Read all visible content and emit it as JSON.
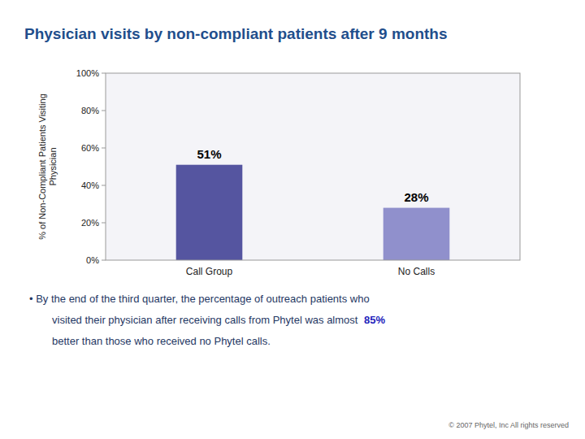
{
  "chart_data": {
    "type": "bar",
    "title": "Physician visits by non-compliant patients after 9 months",
    "categories": [
      "Call Group",
      "No Calls"
    ],
    "values": [
      51,
      28
    ],
    "value_labels": [
      "51%",
      "28%"
    ],
    "data_labels": true,
    "colors": [
      "#5555A0",
      "#9090CC"
    ],
    "ylabel": "% of Non-Compliant Patients Visiting\nPhysician",
    "ylim": [
      0,
      100
    ],
    "yticks": [
      {
        "value": 0,
        "label": "0%"
      },
      {
        "value": 20,
        "label": "20%"
      },
      {
        "value": 40,
        "label": "40%"
      },
      {
        "value": 60,
        "label": "60%"
      },
      {
        "value": 80,
        "label": "80%"
      },
      {
        "value": 100,
        "label": "100%"
      }
    ],
    "grid": false,
    "annotations": [
      "•  By the end of the third quarter, the percentage of outreach patients who",
      "visited their physician after receiving calls from Phytel was almost ",
      "85%",
      "better than those who received no Phytel calls."
    ],
    "footnote": "© 2007 Phytel, Inc  All rights reserved"
  }
}
